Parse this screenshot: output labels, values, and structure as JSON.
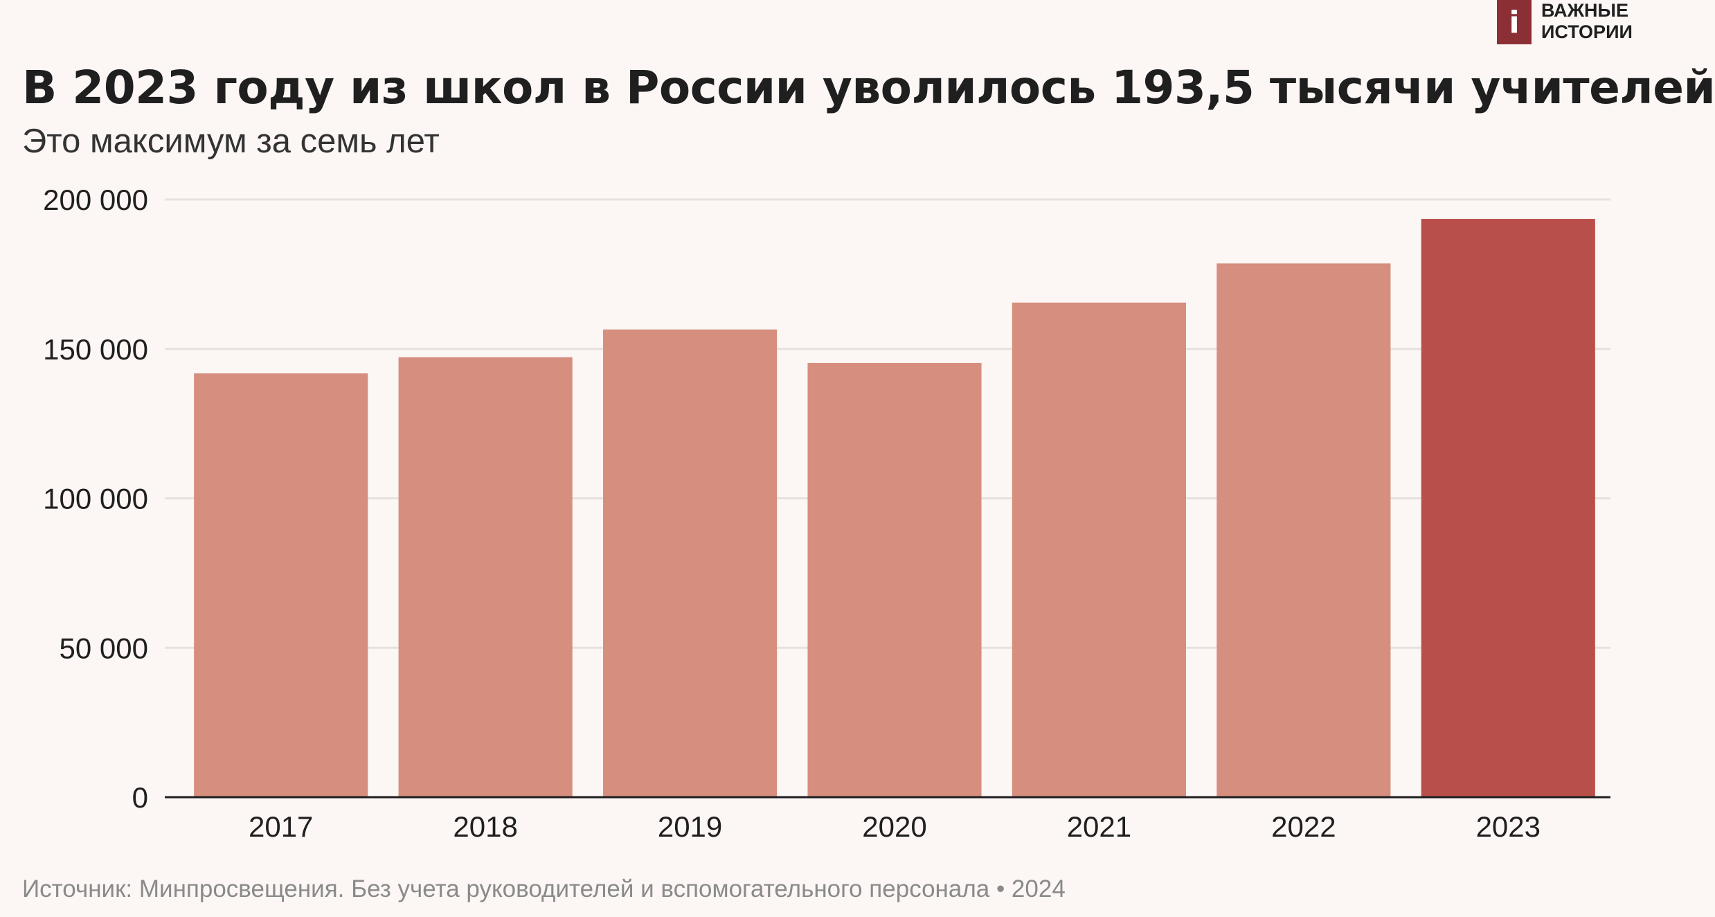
{
  "logo": {
    "mark": "i",
    "line1": "ВАЖНЫЕ",
    "line2": "ИСТОРИИ"
  },
  "colors": {
    "background": "#fcf6f4",
    "bar": "#d68e7e",
    "bar_highlight": "#b94f4a",
    "grid": "#e6e1df",
    "axis": "#1f1f1f",
    "logo": "#8b2f35"
  },
  "footer": {
    "source": "Источник: Минпросвещения. Без учета руководителей и вспомогательного персонала • 2024"
  },
  "chart_data": {
    "type": "bar",
    "title": "В 2023 году из школ в России уволилось 193,5 тысячи учителей",
    "subtitle": "Это максимум за семь лет",
    "categories": [
      "2017",
      "2018",
      "2019",
      "2020",
      "2021",
      "2022",
      "2023"
    ],
    "values": [
      141800,
      147200,
      156500,
      145300,
      165500,
      178600,
      193500
    ],
    "highlight_index": 6,
    "ylim": [
      0,
      200000
    ],
    "yticks": [
      0,
      50000,
      100000,
      150000,
      200000
    ],
    "ytick_labels": [
      "0",
      "50 000",
      "100 000",
      "150 000",
      "200 000"
    ],
    "grid": true,
    "xlabel": "",
    "ylabel": ""
  }
}
